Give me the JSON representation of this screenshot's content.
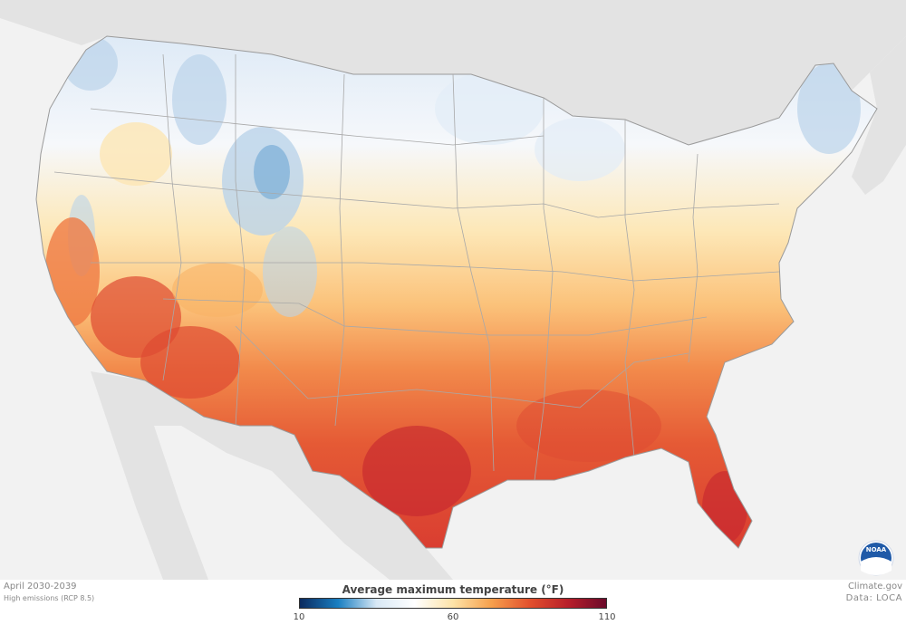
{
  "legend": {
    "title": "Average maximum temperature (°F)",
    "ticks": [
      "10",
      "60",
      "110"
    ],
    "colors": [
      "#0b2a5e",
      "#1a7fc2",
      "#d8e8f5",
      "#ffffff",
      "#fde3a8",
      "#f6a04d",
      "#e2502d",
      "#b81f2a",
      "#6b0a2a"
    ]
  },
  "footer": {
    "period": "April 2030-2039",
    "scenario": "High emissions (RCP 8.5)",
    "credit": "Climate.gov",
    "data_source": "Data: LOCA"
  },
  "logo": {
    "text": "NOAA"
  },
  "map": {
    "land_color": "#e3e3e3",
    "water_color": "#f2f2f2",
    "border_color": "#9a9a9a",
    "warm_colors": [
      "#fde6b4",
      "#f8b366",
      "#ef7a44",
      "#de4a32",
      "#c4252e"
    ],
    "cool_colors": [
      "#e3edf7",
      "#bad3ea",
      "#7aaed7"
    ]
  }
}
